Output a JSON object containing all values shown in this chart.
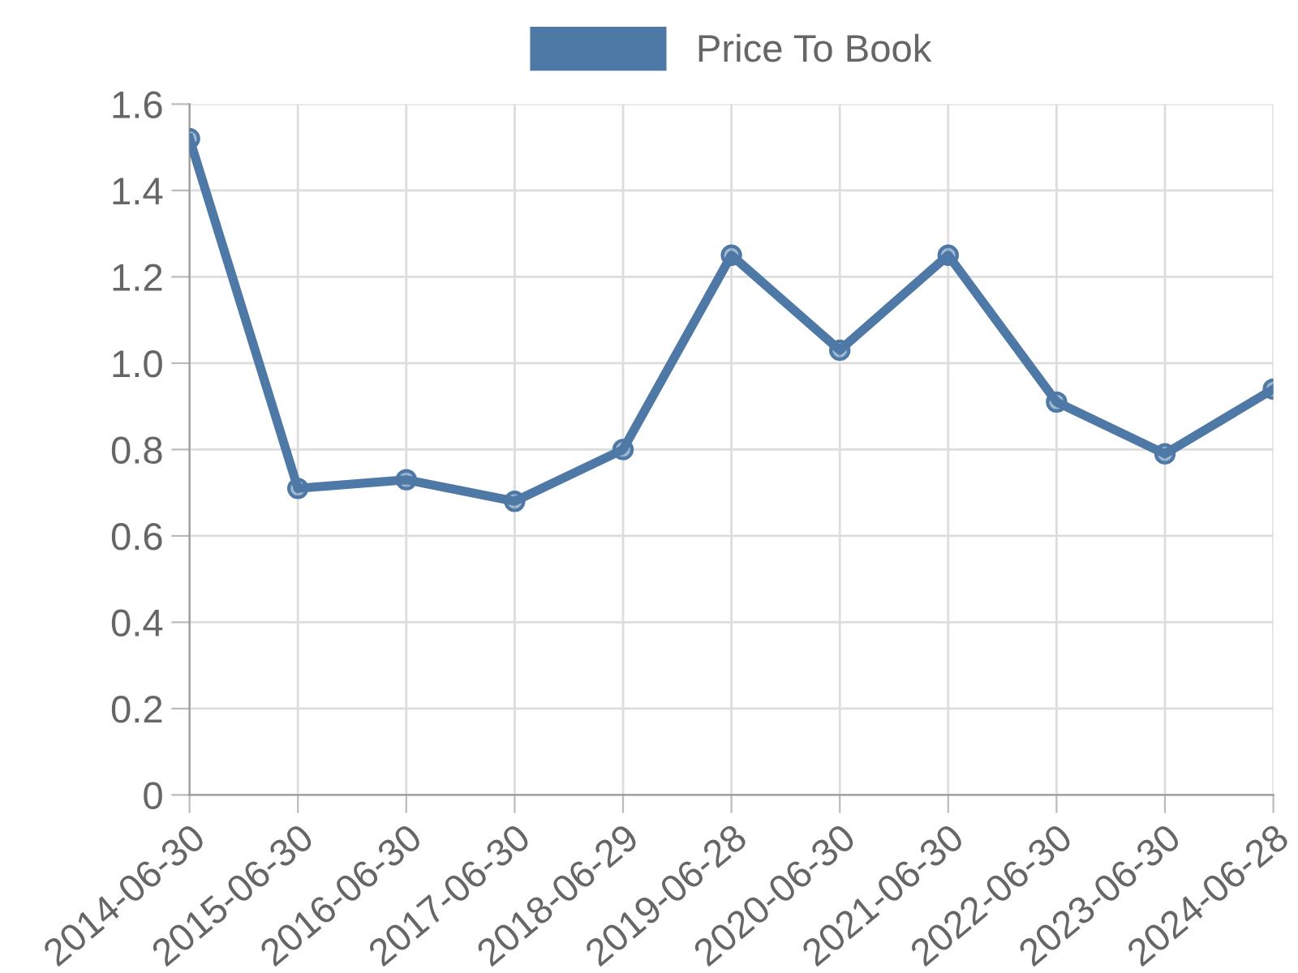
{
  "chart_data": {
    "type": "line",
    "categories": [
      "2014-06-30",
      "2015-06-30",
      "2016-06-30",
      "2017-06-30",
      "2018-06-29",
      "2019-06-28",
      "2020-06-30",
      "2021-06-30",
      "2022-06-30",
      "2023-06-30",
      "2024-06-28"
    ],
    "series": [
      {
        "name": "Price To Book",
        "color": "#4e79a7",
        "values": [
          1.52,
          0.71,
          0.73,
          0.68,
          0.8,
          1.25,
          1.03,
          1.25,
          0.91,
          0.79,
          0.94
        ]
      }
    ],
    "ylim": [
      0,
      1.6
    ],
    "yticks": [
      0,
      0.2,
      0.4,
      0.6,
      0.8,
      {
        "value": 1,
        "label": "1.0"
      },
      1.2,
      1.4,
      1.6
    ],
    "grid": true,
    "legend": "top",
    "marker": "circle",
    "line_style": "solid"
  }
}
